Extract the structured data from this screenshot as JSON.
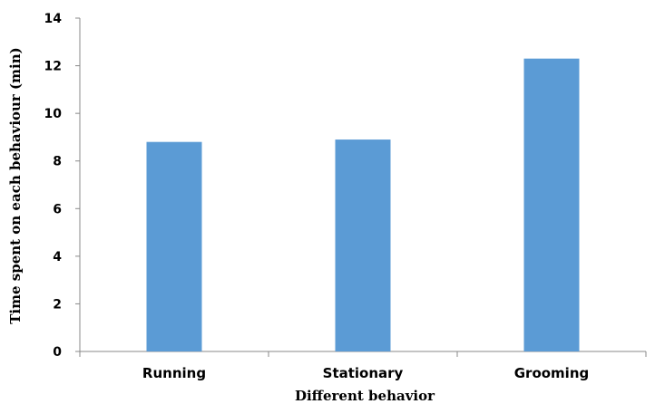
{
  "chart_data": {
    "type": "bar",
    "categories": [
      "Running",
      "Stationary",
      "Grooming"
    ],
    "values": [
      8.8,
      8.9,
      12.3
    ],
    "title": "",
    "xlabel": "Different behavior",
    "ylabel": "Time spent on each behaviour (min)",
    "ylim": [
      0,
      14
    ],
    "yticks": [
      "0",
      "2",
      "4",
      "6",
      "8",
      "10",
      "12",
      "14"
    ],
    "grid": false,
    "legend": "none",
    "bar_color": "#5b9bd5",
    "axis_color": "#888888"
  }
}
